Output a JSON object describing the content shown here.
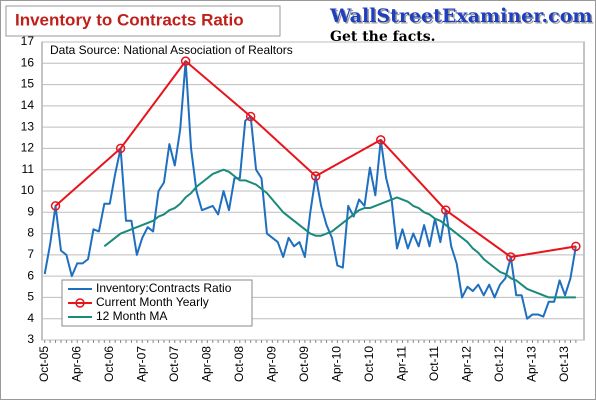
{
  "chart_data": {
    "type": "line",
    "title": "Inventory to Contracts Ratio",
    "source_note": "Data Source: National Association of Realtors",
    "watermark": "WallStreetExaminer.com",
    "tagline": "Get the facts.",
    "categories": [
      "Oct-05",
      null,
      null,
      null,
      null,
      null,
      "Apr-06",
      null,
      null,
      null,
      null,
      null,
      "Oct-06",
      null,
      null,
      null,
      null,
      null,
      "Apr-07",
      null,
      null,
      null,
      null,
      null,
      "Oct-07",
      null,
      null,
      null,
      null,
      null,
      "Apr-08",
      null,
      null,
      null,
      null,
      null,
      "Oct-08",
      null,
      null,
      null,
      null,
      null,
      "Apr-09",
      null,
      null,
      null,
      null,
      null,
      "Oct-09",
      null,
      null,
      null,
      null,
      null,
      "Apr-10",
      null,
      null,
      null,
      null,
      null,
      "Oct-10",
      null,
      null,
      null,
      null,
      null,
      "Apr-11",
      null,
      null,
      null,
      null,
      null,
      "Oct-11",
      null,
      null,
      null,
      null,
      null,
      "Apr-12",
      null,
      null,
      null,
      null,
      null,
      "Oct-12",
      null,
      null,
      null,
      null,
      null,
      "Apr-13",
      null,
      null,
      null,
      null,
      null,
      "Oct-13",
      null,
      null
    ],
    "series": [
      {
        "name": "Inventory:Contracts Ratio",
        "color": "#1f6fc0",
        "values": [
          6.1,
          7.5,
          9.3,
          7.2,
          7.0,
          6.0,
          6.6,
          6.6,
          6.8,
          8.2,
          8.1,
          9.4,
          9.4,
          10.8,
          12.0,
          8.6,
          8.6,
          7.0,
          7.8,
          8.3,
          8.1,
          10.0,
          10.4,
          12.2,
          11.2,
          12.9,
          16.1,
          12.0,
          10.0,
          9.1,
          9.2,
          9.3,
          8.9,
          10.0,
          9.1,
          10.6,
          10.6,
          13.3,
          13.5,
          11.0,
          10.6,
          8.0,
          7.8,
          7.6,
          6.9,
          7.8,
          7.4,
          7.6,
          6.9,
          9.0,
          10.7,
          9.3,
          8.4,
          7.8,
          6.5,
          6.4,
          9.3,
          8.8,
          9.6,
          9.3,
          11.1,
          9.8,
          12.4,
          10.6,
          9.6,
          7.3,
          8.2,
          7.3,
          8.0,
          7.4,
          8.4,
          7.4,
          8.7,
          7.6,
          9.1,
          7.4,
          6.6,
          5.0,
          5.5,
          5.3,
          5.6,
          5.1,
          5.6,
          5.0,
          5.6,
          5.9,
          6.9,
          5.1,
          5.1,
          4.0,
          4.2,
          4.2,
          4.1,
          4.8,
          4.8,
          5.8,
          5.1,
          5.9,
          7.4
        ]
      },
      {
        "name": "Current Month Yearly",
        "color": "#e8141c",
        "marker": "circle",
        "values": [
          null,
          null,
          9.3,
          null,
          null,
          null,
          null,
          null,
          null,
          null,
          null,
          null,
          null,
          null,
          12.0,
          null,
          null,
          null,
          null,
          null,
          null,
          null,
          null,
          null,
          null,
          null,
          16.1,
          null,
          null,
          null,
          null,
          null,
          null,
          null,
          null,
          null,
          null,
          null,
          13.5,
          null,
          null,
          null,
          null,
          null,
          null,
          null,
          null,
          null,
          null,
          null,
          10.7,
          null,
          null,
          null,
          null,
          null,
          null,
          null,
          null,
          null,
          null,
          null,
          12.4,
          null,
          null,
          null,
          null,
          null,
          null,
          null,
          null,
          null,
          null,
          null,
          9.1,
          null,
          null,
          null,
          null,
          null,
          null,
          null,
          null,
          null,
          null,
          null,
          6.9,
          null,
          null,
          null,
          null,
          null,
          null,
          null,
          null,
          null,
          null,
          null,
          7.4
        ]
      },
      {
        "name": "12 Month MA",
        "color": "#1a8a7a",
        "values": [
          null,
          null,
          null,
          null,
          null,
          null,
          null,
          null,
          null,
          null,
          null,
          7.4,
          7.6,
          7.8,
          8.0,
          8.1,
          8.2,
          8.3,
          8.4,
          8.5,
          8.6,
          8.8,
          8.9,
          9.1,
          9.2,
          9.4,
          9.7,
          9.9,
          10.2,
          10.4,
          10.6,
          10.8,
          10.9,
          11.0,
          10.9,
          10.7,
          10.5,
          10.5,
          10.4,
          10.3,
          10.1,
          9.9,
          9.6,
          9.3,
          9.0,
          8.8,
          8.6,
          8.4,
          8.2,
          8.0,
          7.9,
          7.9,
          8.0,
          8.1,
          8.3,
          8.5,
          8.7,
          8.9,
          9.1,
          9.2,
          9.2,
          9.3,
          9.4,
          9.5,
          9.6,
          9.7,
          9.6,
          9.5,
          9.3,
          9.2,
          9.0,
          8.9,
          8.7,
          8.6,
          8.4,
          8.2,
          8.0,
          7.8,
          7.6,
          7.3,
          7.1,
          6.8,
          6.6,
          6.4,
          6.2,
          6.1,
          5.9,
          5.8,
          5.6,
          5.4,
          5.3,
          5.2,
          5.1,
          5.0,
          5.0,
          5.0,
          5.0,
          5.0,
          5.0
        ]
      }
    ],
    "ylim": [
      3,
      17
    ],
    "yticks": [
      3,
      4,
      5,
      6,
      7,
      8,
      9,
      10,
      11,
      12,
      13,
      14,
      15,
      16,
      17
    ],
    "grid": true,
    "legend": "lower-left"
  }
}
